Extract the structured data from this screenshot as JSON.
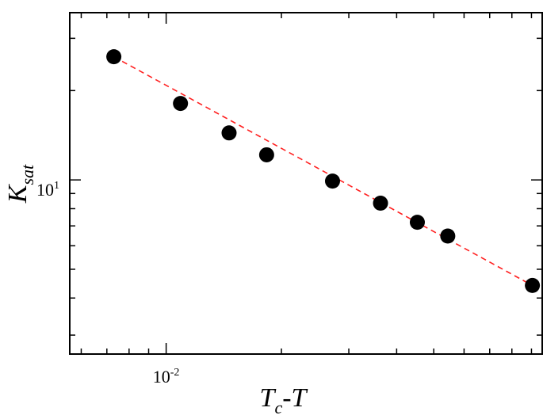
{
  "chart_data": {
    "type": "scatter",
    "xscale": "log",
    "yscale": "log",
    "xlim": [
      0.0056,
      0.096
    ],
    "ylim": [
      2.59,
      36.6
    ],
    "xlabel": {
      "main": "T",
      "sub": "c",
      "rest": "-T"
    },
    "ylabel": {
      "main": "K",
      "sub": "sat"
    },
    "x_tick_labels": [
      {
        "base": "10",
        "exp": "-2",
        "value": 0.01
      }
    ],
    "y_tick_labels": [
      {
        "base": "10",
        "exp": "1",
        "value": 10
      }
    ],
    "grid": false,
    "series": [
      {
        "marker": "filled-circle",
        "color": "#000000",
        "points": [
          {
            "x": 0.0073,
            "y": 26.0
          },
          {
            "x": 0.0109,
            "y": 18.1
          },
          {
            "x": 0.0146,
            "y": 14.4
          },
          {
            "x": 0.0183,
            "y": 12.15
          },
          {
            "x": 0.0272,
            "y": 9.91
          },
          {
            "x": 0.0363,
            "y": 8.35
          },
          {
            "x": 0.0453,
            "y": 7.2
          },
          {
            "x": 0.0544,
            "y": 6.47
          },
          {
            "x": 0.0905,
            "y": 4.41
          }
        ]
      },
      {
        "type": "line",
        "style": "dashed",
        "color": "#ff2020",
        "fit": "power-law",
        "points": [
          {
            "x": 0.0073,
            "y": 26.0
          },
          {
            "x": 0.0905,
            "y": 4.41
          }
        ]
      }
    ]
  }
}
